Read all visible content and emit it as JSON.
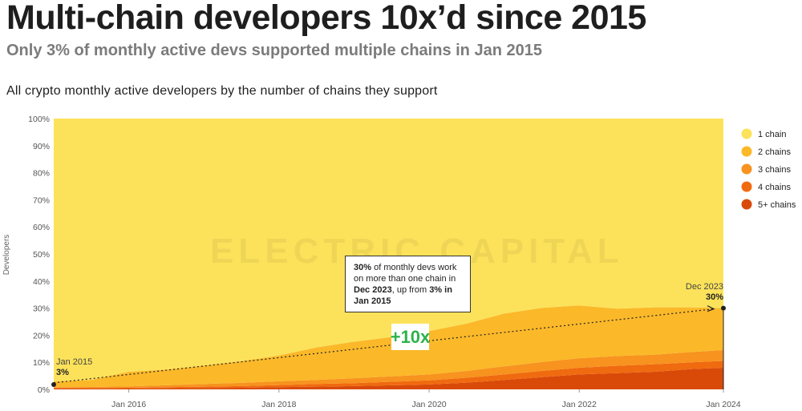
{
  "header": {
    "title": "Multi-chain developers 10x’d since 2015",
    "subtitle": "Only 3% of monthly active devs supported multiple chains in Jan 2015"
  },
  "chart_data": {
    "type": "area",
    "stacked": true,
    "normalized": true,
    "title": "All crypto monthly active developers by the number of chains they support",
    "ylabel": "Developers",
    "xlabel": "",
    "ylim": [
      0,
      100
    ],
    "y_ticks": [
      "0%",
      "10%",
      "20%",
      "30%",
      "40%",
      "50%",
      "60%",
      "70%",
      "80%",
      "90%",
      "100%"
    ],
    "x_ticks": [
      "Jan 2016",
      "Jan 2018",
      "Jan 2020",
      "Jan 2022",
      "Jan 2024"
    ],
    "x_tick_years": [
      2016,
      2018,
      2020,
      2022,
      2024
    ],
    "x_range": [
      2015.0,
      2023.92
    ],
    "grid": false,
    "legend_position": "right",
    "x": [
      2015.0,
      2015.5,
      2016.0,
      2016.5,
      2017.0,
      2017.5,
      2018.0,
      2018.5,
      2019.0,
      2019.5,
      2020.0,
      2020.5,
      2021.0,
      2021.5,
      2022.0,
      2022.5,
      2023.0,
      2023.5,
      2023.92
    ],
    "series": [
      {
        "name": "5+ chains",
        "color": "#d94a09",
        "values": [
          0.3,
          0.3,
          0.3,
          0.4,
          0.5,
          0.6,
          0.8,
          1.0,
          1.2,
          1.5,
          1.8,
          2.5,
          3.5,
          4.5,
          5.5,
          6.0,
          6.5,
          7.5,
          8.0
        ]
      },
      {
        "name": "4 chains",
        "color": "#f06a0f",
        "values": [
          0.2,
          0.2,
          0.3,
          0.4,
          0.5,
          0.6,
          0.8,
          1.0,
          1.1,
          1.3,
          1.5,
          1.8,
          2.0,
          2.3,
          2.5,
          2.7,
          2.8,
          2.5,
          2.5
        ]
      },
      {
        "name": "3 chains",
        "color": "#f7931e",
        "values": [
          0.3,
          0.4,
          0.5,
          0.7,
          1.0,
          1.2,
          1.4,
          1.5,
          1.8,
          2.0,
          2.2,
          2.5,
          3.0,
          3.3,
          3.5,
          3.6,
          3.5,
          3.8,
          4.0
        ]
      },
      {
        "name": "2 chains",
        "color": "#fbb829",
        "values": [
          2.2,
          2.6,
          5.4,
          5.8,
          6.8,
          8.0,
          9.5,
          12.0,
          13.5,
          14.5,
          16.0,
          17.5,
          19.5,
          20.0,
          19.5,
          17.5,
          17.5,
          16.5,
          15.5
        ]
      },
      {
        "name": "1 chain",
        "color": "#fce25a",
        "values": [
          97.0,
          96.5,
          93.5,
          92.7,
          91.2,
          89.6,
          87.5,
          84.5,
          82.4,
          80.7,
          78.5,
          75.7,
          72.0,
          69.9,
          69.0,
          70.2,
          69.7,
          69.7,
          70.0
        ]
      }
    ],
    "legend": [
      "1 chain",
      "2 chains",
      "3 chains",
      "4 chains",
      "5+ chains"
    ],
    "legend_colors": [
      "#fce25a",
      "#fbb829",
      "#f7931e",
      "#f06a0f",
      "#d94a09"
    ],
    "trend_line": {
      "start_label": "Jan 2015",
      "start_value_label": "3%",
      "start": 3,
      "end_label": "Dec 2023",
      "end_value_label": "30%",
      "end": 30
    },
    "badge": "+10x",
    "watermark": "ELECTRIC CAPITAL"
  },
  "callout": {
    "part1_bold": "30%",
    "part2": " of monthly devs work on more than one chain in ",
    "part3_bold": "Dec 2023",
    "part4": ", up from ",
    "part5_bold": "3% in Jan 2015"
  }
}
